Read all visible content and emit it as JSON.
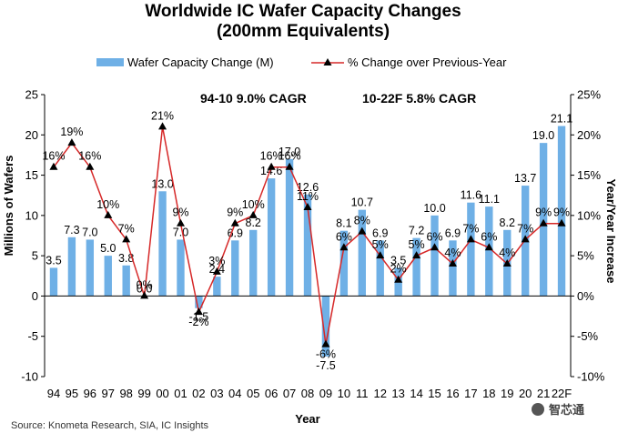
{
  "chart_data": {
    "type": "bar+line",
    "title": "Worldwide IC Wafer Capacity Changes",
    "subtitle": "(200mm Equivalents)",
    "xlabel": "Year",
    "ylabel": "Millions of Wafers",
    "y2label": "Year/Year Increase",
    "ylim": [
      -10,
      25
    ],
    "yticks": [
      "-10",
      "-5",
      "0",
      "5",
      "10",
      "15",
      "20",
      "25"
    ],
    "y2lim": [
      -10,
      25
    ],
    "y2ticks": [
      "-10%",
      "-5%",
      "0%",
      "5%",
      "10%",
      "15%",
      "20%",
      "25%"
    ],
    "categories": [
      "94",
      "95",
      "96",
      "97",
      "98",
      "99",
      "00",
      "01",
      "02",
      "03",
      "04",
      "05",
      "06",
      "07",
      "08",
      "09",
      "10",
      "11",
      "12",
      "13",
      "14",
      "15",
      "16",
      "17",
      "18",
      "19",
      "20",
      "21",
      "22F"
    ],
    "series": [
      {
        "name": "Wafer Capacity Change (M)",
        "type": "bar",
        "color": "#6fb0e6",
        "values": [
          3.5,
          7.3,
          7.0,
          5.0,
          3.8,
          0.0,
          13.0,
          7.0,
          -1.5,
          2.4,
          6.9,
          8.2,
          14.6,
          17.0,
          12.6,
          -7.5,
          8.1,
          10.7,
          6.9,
          3.5,
          7.2,
          10.0,
          6.9,
          11.6,
          11.1,
          8.2,
          13.7,
          19.0,
          21.1
        ],
        "labels": [
          "3.5",
          "7.3",
          "7.0",
          "5.0",
          "3.8",
          "0.0",
          "13.0",
          "7.0",
          "-1.5",
          "2.4",
          "6.9",
          "8.2",
          "14.6",
          "17.0",
          "12.6",
          "-7.5",
          "8.1",
          "10.7",
          "6.9",
          "3.5",
          "7.2",
          "10.0",
          "6.9",
          "11.6",
          "11.1",
          "8.2",
          "13.7",
          "19.0",
          "21.1"
        ]
      },
      {
        "name": "% Change over Previous-Year",
        "type": "line",
        "color": "#d62828",
        "marker_color": "#000000",
        "values": [
          16,
          19,
          16,
          10,
          7,
          0,
          21,
          9,
          -2,
          3,
          9,
          10,
          16,
          16,
          11,
          -6,
          6,
          8,
          5,
          2,
          5,
          6,
          4,
          7,
          6,
          4,
          7,
          9,
          9
        ],
        "labels": [
          "16%",
          "19%",
          "16%",
          "10%",
          "7%",
          "0%",
          "21%",
          "9%",
          "-2%",
          "3%",
          "9%",
          "10%",
          "16%",
          "16%",
          "11%",
          "-6%",
          "6%",
          "8%",
          "5%",
          "2%",
          "5%",
          "6%",
          "4%",
          "7%",
          "6%",
          "4%",
          "7%",
          "9%",
          "9%"
        ]
      }
    ],
    "annotations": [
      "94-10 9.0% CAGR",
      "10-22F 5.8% CAGR"
    ],
    "legend_position": "top"
  },
  "source": "Source: Knometa Research, SIA, IC Insights",
  "watermark": "智芯通"
}
